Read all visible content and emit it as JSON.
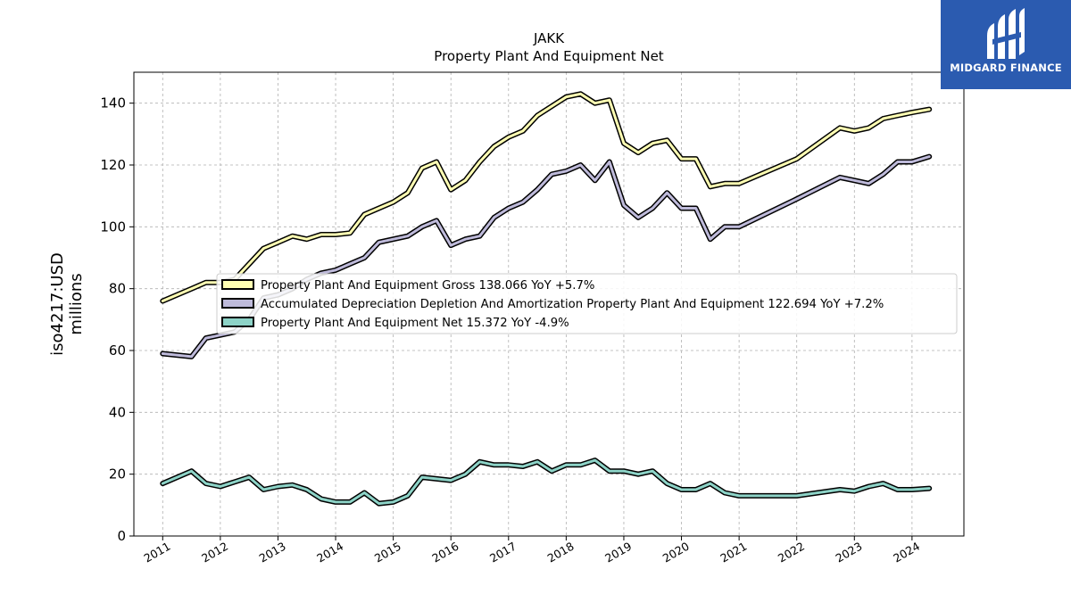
{
  "logo": {
    "text": "MIDGARD FINANCE"
  },
  "chart_data": {
    "type": "line",
    "title": "JAKK",
    "subtitle": "Property Plant And Equipment Net",
    "ylabel": "iso4217:USD",
    "ylabel2": "millions",
    "xlim": [
      2010.5,
      2024.9
    ],
    "ylim": [
      0,
      150
    ],
    "yticks": [
      0,
      20,
      40,
      60,
      80,
      100,
      120,
      140
    ],
    "xticks": [
      "2011",
      "2012",
      "2013",
      "2014",
      "2015",
      "2016",
      "2017",
      "2018",
      "2019",
      "2020",
      "2021",
      "2022",
      "2023",
      "2024"
    ],
    "grid": true,
    "legend_position": "center-right",
    "series": [
      {
        "name": "Property Plant And Equipment Gross",
        "legend_label": "Property Plant And Equipment Gross  138.066 YoY +5.7%",
        "color": "#ffffb3",
        "x": [
          2011.0,
          2011.5,
          2011.75,
          2012.0,
          2012.25,
          2012.5,
          2012.75,
          2013.0,
          2013.25,
          2013.5,
          2013.75,
          2014.0,
          2014.25,
          2014.5,
          2014.75,
          2015.0,
          2015.25,
          2015.5,
          2015.75,
          2016.0,
          2016.25,
          2016.5,
          2016.75,
          2017.0,
          2017.25,
          2017.5,
          2017.75,
          2018.0,
          2018.25,
          2018.5,
          2018.75,
          2019.0,
          2019.25,
          2019.5,
          2019.75,
          2020.0,
          2020.25,
          2020.5,
          2020.75,
          2021.0,
          2022.0,
          2022.75,
          2023.0,
          2023.25,
          2023.5,
          2023.75,
          2024.0,
          2024.3
        ],
        "values": [
          76,
          80,
          82,
          82,
          83,
          88,
          93,
          95,
          97,
          96,
          97.5,
          97.5,
          98,
          104,
          106,
          108,
          111,
          119,
          121,
          112,
          115,
          121,
          126,
          129,
          131,
          136,
          139,
          142,
          143,
          140,
          141,
          127,
          124,
          127,
          128,
          122,
          122,
          113,
          114,
          114,
          122,
          132,
          131,
          132,
          135,
          136,
          137,
          138
        ]
      },
      {
        "name": "Accumulated Depreciation Depletion And Amortization Property Plant And Equipment",
        "legend_label": "Accumulated Depreciation Depletion And Amortization Property Plant And Equipment  122.694 YoY +7.2%",
        "color": "#bebada",
        "x": [
          2011.0,
          2011.5,
          2011.75,
          2012.0,
          2012.25,
          2012.5,
          2012.75,
          2013.0,
          2013.25,
          2013.5,
          2013.75,
          2014.0,
          2014.25,
          2014.5,
          2014.75,
          2015.0,
          2015.25,
          2015.5,
          2015.75,
          2016.0,
          2016.25,
          2016.5,
          2016.75,
          2017.0,
          2017.25,
          2017.5,
          2017.75,
          2018.0,
          2018.25,
          2018.5,
          2018.75,
          2019.0,
          2019.25,
          2019.5,
          2019.75,
          2020.0,
          2020.25,
          2020.5,
          2020.75,
          2021.0,
          2022.0,
          2022.75,
          2023.0,
          2023.25,
          2023.5,
          2023.75,
          2024.0,
          2024.3
        ],
        "values": [
          59,
          58,
          64,
          65,
          66,
          70,
          77,
          78,
          80,
          83,
          85,
          86,
          88,
          90,
          95,
          96,
          97,
          100,
          102,
          94,
          96,
          97,
          103,
          106,
          108,
          112,
          117,
          118,
          120,
          115,
          121,
          107,
          103,
          106,
          111,
          106,
          106,
          96,
          100,
          100,
          109,
          116,
          115,
          114,
          117,
          121,
          121,
          122.7
        ]
      },
      {
        "name": "Property Plant And Equipment Net",
        "legend_label": "Property Plant And Equipment Net  15.372 YoY -4.9%",
        "color": "#8dd3c7",
        "x": [
          2011.0,
          2011.5,
          2011.75,
          2012.0,
          2012.25,
          2012.5,
          2012.75,
          2013.0,
          2013.25,
          2013.5,
          2013.75,
          2014.0,
          2014.25,
          2014.5,
          2014.75,
          2015.0,
          2015.25,
          2015.5,
          2015.75,
          2016.0,
          2016.25,
          2016.5,
          2016.75,
          2017.0,
          2017.25,
          2017.5,
          2017.75,
          2018.0,
          2018.25,
          2018.5,
          2018.75,
          2019.0,
          2019.25,
          2019.5,
          2019.75,
          2020.0,
          2020.25,
          2020.5,
          2020.75,
          2021.0,
          2022.0,
          2022.75,
          2023.0,
          2023.25,
          2023.5,
          2023.75,
          2024.0,
          2024.3
        ],
        "values": [
          17,
          21,
          17,
          16,
          17.5,
          19,
          15,
          16,
          16.5,
          15,
          12,
          11,
          11,
          14,
          10.5,
          11,
          13,
          19,
          18.5,
          18,
          20,
          24,
          23,
          23,
          22.5,
          24,
          21,
          23,
          23,
          24.5,
          21,
          21,
          20,
          21,
          17,
          15,
          15,
          17,
          14,
          13,
          13,
          15,
          14.5,
          16,
          17,
          15,
          15,
          15.4
        ]
      }
    ]
  }
}
